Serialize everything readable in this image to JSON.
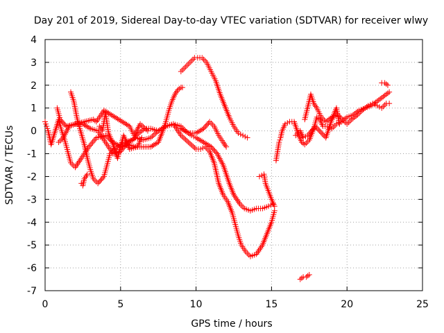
{
  "chart_data": {
    "type": "scatter",
    "title": "Day 201 of 2019, Sidereal Day-to-day VTEC variation (SDTVAR) for receiver wlwy",
    "xlabel": "GPS time / hours",
    "ylabel": "SDTVAR / TECUs",
    "xlim": [
      0,
      25
    ],
    "ylim": [
      -7,
      4
    ],
    "xticks": [
      0,
      5,
      10,
      15,
      20,
      25
    ],
    "yticks": [
      -7,
      -6,
      -5,
      -4,
      -3,
      -2,
      -1,
      0,
      1,
      2,
      3,
      4
    ],
    "grid": true,
    "marker": "+",
    "color": "#ff0000",
    "series": [
      {
        "points": [
          [
            0.0,
            0.4
          ],
          [
            0.1,
            0.2
          ],
          [
            0.2,
            0.0
          ],
          [
            0.3,
            -0.3
          ],
          [
            0.4,
            -0.6
          ],
          [
            0.9,
            0.5
          ],
          [
            1.1,
            0.0
          ],
          [
            1.3,
            -0.4
          ],
          [
            1.5,
            -0.9
          ],
          [
            1.7,
            -1.4
          ],
          [
            2.0,
            -1.6
          ],
          [
            2.4,
            -1.2
          ],
          [
            2.9,
            -0.7
          ],
          [
            3.4,
            -0.3
          ],
          [
            4.0,
            -0.2
          ],
          [
            4.5,
            -0.5
          ],
          [
            5.0,
            -0.7
          ],
          [
            5.5,
            -0.6
          ],
          [
            6.0,
            -0.7
          ],
          [
            6.5,
            -0.7
          ],
          [
            7.0,
            -0.7
          ],
          [
            7.5,
            -0.5
          ],
          [
            7.8,
            0.0
          ],
          [
            8.0,
            0.4
          ],
          [
            8.2,
            0.9
          ],
          [
            8.4,
            1.3
          ],
          [
            8.6,
            1.6
          ],
          [
            8.8,
            1.8
          ],
          [
            9.0,
            1.9
          ],
          [
            9.1,
            1.9
          ],
          [
            0.9,
            -0.5
          ],
          [
            1.2,
            -0.3
          ],
          [
            1.6,
            0.2
          ],
          [
            2.0,
            0.3
          ],
          [
            2.5,
            0.3
          ],
          [
            3.0,
            0.1
          ],
          [
            3.5,
            0.0
          ],
          [
            4.0,
            -0.5
          ],
          [
            4.5,
            -1.0
          ],
          [
            5.0,
            -0.9
          ],
          [
            5.5,
            -0.5
          ],
          [
            6.0,
            -0.3
          ],
          [
            6.5,
            -0.4
          ],
          [
            7.0,
            -0.3
          ],
          [
            7.5,
            0.0
          ],
          [
            8.0,
            0.2
          ],
          [
            8.5,
            0.3
          ],
          [
            9.0,
            0.2
          ],
          [
            9.3,
            0.0
          ],
          [
            9.7,
            -0.2
          ],
          [
            10.0,
            -0.3
          ],
          [
            10.5,
            -0.5
          ],
          [
            11.0,
            -0.7
          ],
          [
            11.4,
            -1.0
          ],
          [
            11.8,
            -1.5
          ],
          [
            12.2,
            -2.3
          ],
          [
            12.5,
            -2.8
          ],
          [
            12.9,
            -3.2
          ],
          [
            13.2,
            -3.4
          ],
          [
            13.6,
            -3.5
          ],
          [
            14.0,
            -3.4
          ],
          [
            14.4,
            -3.4
          ],
          [
            14.8,
            -3.3
          ],
          [
            15.1,
            -3.2
          ],
          [
            1.7,
            1.7
          ],
          [
            1.9,
            1.3
          ],
          [
            2.1,
            0.6
          ],
          [
            2.3,
            0.1
          ],
          [
            2.6,
            -0.6
          ],
          [
            2.8,
            -1.2
          ],
          [
            3.0,
            -1.7
          ],
          [
            3.2,
            -2.1
          ],
          [
            3.5,
            -2.3
          ],
          [
            3.9,
            -2.0
          ],
          [
            4.1,
            -1.5
          ],
          [
            4.3,
            -1.0
          ],
          [
            4.6,
            -0.8
          ],
          [
            5.0,
            -0.6
          ],
          [
            5.3,
            -0.5
          ],
          [
            5.8,
            -0.4
          ],
          [
            6.2,
            -0.1
          ],
          [
            6.6,
            0.1
          ],
          [
            7.0,
            0.1
          ],
          [
            7.5,
            0.0
          ],
          [
            8.0,
            0.2
          ],
          [
            8.5,
            0.3
          ],
          [
            9.0,
            -0.2
          ],
          [
            9.5,
            -0.5
          ],
          [
            10.0,
            -0.8
          ],
          [
            10.3,
            -0.8
          ],
          [
            10.6,
            -0.7
          ],
          [
            10.9,
            -0.9
          ],
          [
            11.2,
            -1.4
          ],
          [
            11.5,
            -2.3
          ],
          [
            11.8,
            -2.8
          ],
          [
            12.1,
            -3.1
          ],
          [
            12.4,
            -3.6
          ],
          [
            12.6,
            -4.1
          ],
          [
            12.8,
            -4.6
          ],
          [
            13.0,
            -5.0
          ],
          [
            13.3,
            -5.3
          ],
          [
            13.6,
            -5.5
          ],
          [
            14.0,
            -5.4
          ],
          [
            14.4,
            -5.0
          ],
          [
            14.7,
            -4.5
          ],
          [
            15.0,
            -4.0
          ],
          [
            15.2,
            -3.5
          ],
          [
            2.4,
            -2.3
          ],
          [
            2.5,
            -2.4
          ],
          [
            2.6,
            -2.1
          ],
          [
            2.8,
            -1.9
          ],
          [
            3.6,
            0.2
          ],
          [
            3.8,
            0.0
          ],
          [
            4.0,
            0.8
          ],
          [
            4.2,
            -0.1
          ],
          [
            4.4,
            -0.4
          ],
          [
            4.8,
            -1.2
          ],
          [
            5.2,
            -0.2
          ],
          [
            5.6,
            -0.8
          ],
          [
            6.1,
            -0.7
          ],
          [
            6.4,
            -0.3
          ],
          [
            9.0,
            0.1
          ],
          [
            9.5,
            -0.1
          ],
          [
            10.0,
            -0.1
          ],
          [
            10.5,
            0.1
          ],
          [
            10.9,
            0.4
          ],
          [
            11.2,
            0.2
          ],
          [
            11.5,
            -0.2
          ],
          [
            11.8,
            -0.5
          ],
          [
            12.0,
            -0.7
          ],
          [
            9.0,
            2.6
          ],
          [
            9.3,
            2.8
          ],
          [
            9.6,
            3.0
          ],
          [
            9.9,
            3.2
          ],
          [
            10.1,
            3.2
          ],
          [
            10.4,
            3.2
          ],
          [
            10.7,
            3.0
          ],
          [
            11.0,
            2.6
          ],
          [
            11.3,
            2.2
          ],
          [
            11.6,
            1.6
          ],
          [
            11.9,
            1.1
          ],
          [
            12.2,
            0.6
          ],
          [
            12.5,
            0.2
          ],
          [
            12.8,
            -0.1
          ],
          [
            13.1,
            -0.2
          ],
          [
            13.4,
            -0.3
          ],
          [
            14.2,
            -2.0
          ],
          [
            14.5,
            -1.9
          ],
          [
            14.6,
            -2.3
          ],
          [
            15.0,
            -3.0
          ],
          [
            15.2,
            -3.3
          ],
          [
            15.3,
            -1.3
          ],
          [
            15.4,
            -0.9
          ],
          [
            15.5,
            -0.5
          ],
          [
            15.6,
            -0.3
          ],
          [
            15.7,
            0.0
          ],
          [
            15.9,
            0.3
          ],
          [
            16.2,
            0.4
          ],
          [
            16.5,
            0.4
          ],
          [
            16.8,
            -0.2
          ],
          [
            17.0,
            -0.5
          ],
          [
            17.2,
            -0.6
          ],
          [
            17.5,
            -0.4
          ],
          [
            17.8,
            0.1
          ],
          [
            18.0,
            0.6
          ],
          [
            18.2,
            0.5
          ],
          [
            18.4,
            0.2
          ],
          [
            18.7,
            0.2
          ],
          [
            19.0,
            0.1
          ],
          [
            19.3,
            0.3
          ],
          [
            19.6,
            0.4
          ],
          [
            20.0,
            0.6
          ],
          [
            20.4,
            0.7
          ],
          [
            20.8,
            0.9
          ],
          [
            21.2,
            1.0
          ],
          [
            21.6,
            1.1
          ],
          [
            22.0,
            1.3
          ],
          [
            22.4,
            1.5
          ],
          [
            22.8,
            1.7
          ],
          [
            17.2,
            0.5
          ],
          [
            17.6,
            1.6
          ],
          [
            17.8,
            1.2
          ],
          [
            18.0,
            1.0
          ],
          [
            18.3,
            0.6
          ],
          [
            18.6,
            0.4
          ],
          [
            19.0,
            0.6
          ],
          [
            19.4,
            0.7
          ],
          [
            19.7,
            0.5
          ],
          [
            20.0,
            0.3
          ],
          [
            20.3,
            0.5
          ],
          [
            20.7,
            0.7
          ],
          [
            21.0,
            0.9
          ],
          [
            21.4,
            1.1
          ],
          [
            21.7,
            1.2
          ],
          [
            22.0,
            1.1
          ],
          [
            22.3,
            1.0
          ],
          [
            22.6,
            1.2
          ],
          [
            22.8,
            1.2
          ],
          [
            16.6,
            -0.2
          ],
          [
            16.9,
            0.0
          ],
          [
            17.1,
            -0.3
          ],
          [
            17.4,
            -0.2
          ],
          [
            17.9,
            0.2
          ],
          [
            18.6,
            -0.3
          ],
          [
            19.0,
            0.5
          ],
          [
            19.3,
            1.0
          ],
          [
            19.5,
            0.3
          ],
          [
            22.3,
            2.1
          ],
          [
            22.5,
            2.1
          ],
          [
            22.7,
            2.0
          ],
          [
            16.9,
            -6.5
          ],
          [
            17.1,
            -6.4
          ],
          [
            17.3,
            -6.4
          ],
          [
            17.5,
            -6.3
          ],
          [
            0.8,
            1.0
          ],
          [
            1.0,
            0.5
          ],
          [
            1.4,
            0.2
          ],
          [
            3.2,
            0.5
          ],
          [
            3.4,
            0.4
          ],
          [
            3.9,
            0.9
          ],
          [
            5.6,
            0.2
          ],
          [
            5.9,
            -0.2
          ],
          [
            6.3,
            0.3
          ],
          [
            6.8,
            0.0
          ]
        ]
      }
    ]
  }
}
